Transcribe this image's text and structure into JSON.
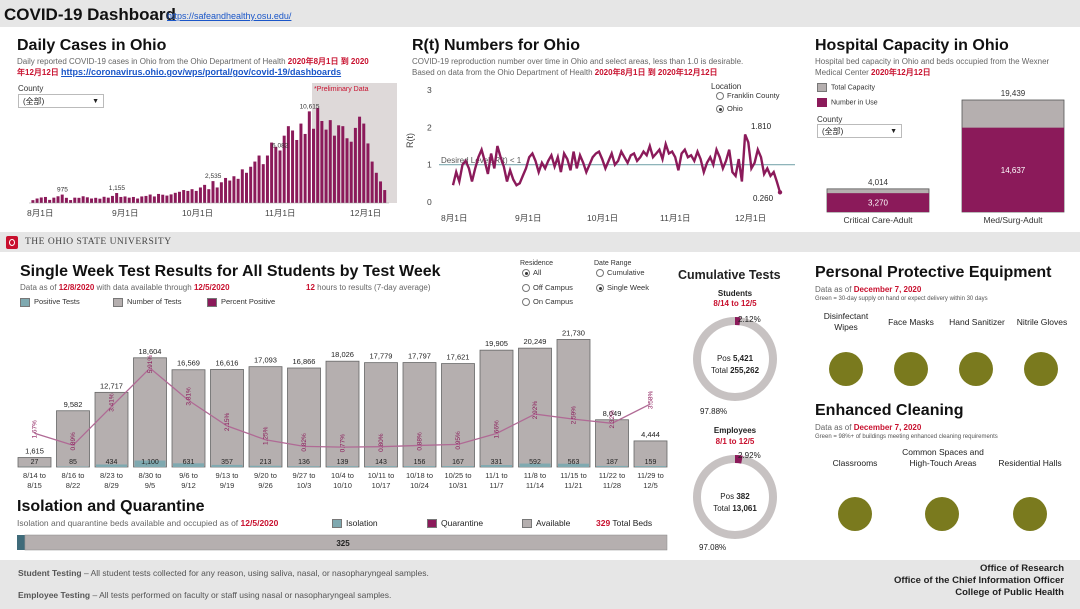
{
  "header": {
    "title": "COVID-19 Dashboard",
    "url": "https://safeandhealthy.osu.edu/"
  },
  "daily_cases": {
    "title": "Daily Cases in Ohio",
    "subtitle": "Daily reported COVID-19 cases in Ohio from the Ohio Department of Health",
    "date_range_a": "2020年8月1日 到 2020",
    "date_range_b": "年12月12日",
    "source_link": "https://coronavirus.ohio.gov/wps/portal/gov/covid-19/dashboards",
    "county_label": "County",
    "county_value": "(全部)",
    "preliminary": "*Preliminary Data",
    "colors": {
      "bar": "#8b1a5a",
      "shade": "#ded9d9"
    }
  },
  "rt": {
    "title": "R(t) Numbers for Ohio",
    "subtitle_a": "COVID-19 reproduction number over time in Ohio and select areas, less than 1.0 is desirable.",
    "subtitle_b": "Based on data from the Ohio Department of Health",
    "date_range": "2020年8月1日 到 2020年12月12日",
    "ylabel": "R(t)",
    "desired": "Desired Level: R(t) < 1",
    "location_label": "Location",
    "locations": [
      "Franklin County",
      "Ohio"
    ],
    "peak_label": "1.810",
    "end_label": "0.260"
  },
  "hospital": {
    "title": "Hospital Capacity in Ohio",
    "subtitle": "Hospital bed capacity in Ohio and beds occupied from the Wexner Medical Center",
    "date": "2020年12月12日",
    "legend": [
      "Total Capacity",
      "Number in Use"
    ],
    "county_label": "County",
    "county_value": "(全部)",
    "colors": {
      "capacity": "#b5afaf",
      "in_use": "#8b1a5a"
    }
  },
  "osu": {
    "name": "THE OHIO STATE UNIVERSITY"
  },
  "tests": {
    "title": "Single Week Test Results for All Students by Test Week",
    "data_as_of_prefix": "Data as of",
    "data_as_of": "12/8/2020",
    "available_prefix": "with data available through",
    "available_through": "12/5/2020",
    "hours_value": "12",
    "hours_text": "hours to results (7-day average)",
    "legend": [
      "Positive Tests",
      "Number of Tests",
      "Percent Positive"
    ],
    "residence_label": "Residence",
    "residence_options": [
      "All",
      "Off Campus",
      "On Campus"
    ],
    "date_range_label": "Date Range",
    "date_range_options": [
      "Cumulative",
      "Single Week"
    ],
    "colors": {
      "pos": "#7fa9b0",
      "tests": "#b5afaf",
      "pct": "#8b1a5a"
    }
  },
  "chart_data": [
    {
      "type": "bar",
      "title": "Daily Cases in Ohio",
      "x_ticks": [
        "8月1日",
        "9月1日",
        "10月1日",
        "11月1日",
        "12月1日"
      ],
      "values": [
        330,
        520,
        640,
        700,
        360,
        620,
        780,
        975,
        600,
        340,
        620,
        600,
        780,
        660,
        520,
        600,
        500,
        720,
        620,
        820,
        1155,
        700,
        760,
        620,
        700,
        520,
        760,
        820,
        980,
        760,
        1050,
        960,
        860,
        1000,
        1180,
        1300,
        1500,
        1400,
        1600,
        1400,
        1800,
        2100,
        1600,
        2535,
        1800,
        2400,
        2900,
        2600,
        3100,
        2800,
        3900,
        3500,
        4200,
        4800,
        5500,
        4500,
        5500,
        7000,
        6500,
        6082,
        7800,
        8900,
        8400,
        7300,
        9200,
        8000,
        10615,
        8600,
        11000,
        9500,
        8500,
        9600,
        7800,
        9000,
        8900,
        7500,
        7100,
        8700,
        10000,
        9200,
        6900,
        4800,
        3500,
        2500,
        1500
      ],
      "value_labels": [
        {
          "i": 7,
          "label": "975"
        },
        {
          "i": 20,
          "label": "1,155"
        },
        {
          "i": 43,
          "label": "2,535"
        },
        {
          "i": 59,
          "label": "6,082"
        },
        {
          "i": 66,
          "label": "10,615"
        }
      ],
      "ylim": [
        0,
        11700
      ]
    },
    {
      "type": "line",
      "title": "R(t) Numbers for Ohio",
      "ylabel": "R(t)",
      "y_ticks": [
        0,
        1,
        2,
        3
      ],
      "x_ticks": [
        "8月1日",
        "9月1日",
        "10月1日",
        "11月1日",
        "12月1日"
      ],
      "ylim": [
        0,
        3
      ],
      "reference_line": 1.0,
      "values": [
        0.45,
        0.8,
        0.55,
        1.0,
        1.1,
        0.9,
        0.55,
        0.9,
        1.2,
        1.4,
        1.1,
        0.75,
        1.3,
        0.9,
        1.5,
        1.2,
        0.95,
        0.55,
        0.85,
        0.6,
        0.45,
        0.5,
        0.7,
        0.9,
        1.2,
        1.3,
        1.1,
        0.8,
        1.05,
        0.9,
        1.1,
        1.25,
        0.95,
        1.2,
        0.8,
        1.3,
        1.15,
        0.85,
        1.35,
        0.9,
        1.25,
        1.05,
        0.8,
        1.0,
        1.2,
        1.3,
        1.35,
        1.15,
        0.9,
        1.1,
        1.3,
        1.0,
        1.1,
        1.35,
        1.2,
        1.05,
        1.25,
        1.3,
        1.1,
        1.2,
        1.35,
        1.25,
        1.5,
        1.2,
        1.3,
        1.4,
        1.15,
        1.55,
        1.3,
        1.35,
        1.2,
        0.85,
        1.3,
        1.4,
        1.2,
        1.25,
        1.1,
        1.35,
        1.15,
        0.8,
        1.05,
        1.2,
        1.0,
        1.4,
        1.2,
        0.9,
        1.1,
        1.4,
        0.8,
        0.7,
        1.15,
        0.55,
        1.81,
        1.6,
        0.9,
        1.05,
        1.4,
        1.2,
        0.75,
        0.9,
        0.7,
        0.8,
        0.55,
        0.26
      ]
    },
    {
      "type": "bar",
      "title": "Hospital Capacity in Ohio",
      "categories": [
        "Critical Care-Adult",
        "Med/Surg-Adult"
      ],
      "series": [
        {
          "name": "Total Capacity",
          "values": [
            4014,
            19439
          ]
        },
        {
          "name": "Number in Use",
          "values": [
            3270,
            14637
          ]
        }
      ],
      "value_labels": {
        "capacity": [
          "4,014",
          "19,439"
        ],
        "in_use": [
          "3,270",
          "14,637"
        ]
      }
    },
    {
      "type": "bar",
      "title": "Single Week Test Results for All Students by Test Week",
      "categories": [
        "8/14 to 8/15",
        "8/16 to 8/22",
        "8/23 to 8/29",
        "8/30 to 9/5",
        "9/6 to 9/12",
        "9/13 to 9/19",
        "9/20 to 9/26",
        "9/27 to 10/3",
        "10/4 to 10/10",
        "10/11 to 10/17",
        "10/18 to 10/24",
        "10/25 to 10/31",
        "11/1 to 11/7",
        "11/8 to 11/14",
        "11/15 to 11/21",
        "11/22 to 11/28",
        "11/29 to 12/5"
      ],
      "series": [
        {
          "name": "Number of Tests",
          "values": [
            1615,
            9582,
            12717,
            18604,
            16569,
            16616,
            17093,
            16866,
            18026,
            17779,
            17797,
            17621,
            19905,
            20249,
            21730,
            8049,
            4444
          ],
          "labels": [
            "1,615",
            "9,582",
            "12,717",
            "18,604",
            "16,569",
            "16,616",
            "17,093",
            "16,866",
            "18,026",
            "17,779",
            "17,797",
            "17,621",
            "19,905",
            "20,249",
            "21,730",
            "8,049",
            "4,444"
          ]
        },
        {
          "name": "Positive Tests",
          "values": [
            27,
            85,
            434,
            1100,
            631,
            357,
            213,
            136,
            139,
            143,
            156,
            167,
            331,
            592,
            563,
            187,
            159
          ],
          "labels": [
            "27",
            "85",
            "434",
            "1,100",
            "631",
            "357",
            "213",
            "136",
            "139",
            "143",
            "156",
            "167",
            "331",
            "592",
            "563",
            "187",
            "159"
          ]
        },
        {
          "name": "Percent Positive",
          "values": [
            1.67,
            0.89,
            3.41,
            5.91,
            3.81,
            2.15,
            1.25,
            0.82,
            0.77,
            0.8,
            0.88,
            0.95,
            1.66,
            2.92,
            2.59,
            2.32,
            3.58
          ],
          "labels": [
            "1.67%",
            "0.89%",
            "3.41%",
            "5.91%",
            "3.81%",
            "2.15%",
            "1.25%",
            "0.82%",
            "0.77%",
            "0.80%",
            "0.88%",
            "0.95%",
            "1.66%",
            "2.92%",
            "2.59%",
            "2.32%",
            "3.58%"
          ]
        }
      ],
      "ylim": [
        0,
        23000
      ]
    }
  ],
  "cumulative": {
    "title": "Cumulative Tests",
    "students": {
      "label": "Students",
      "range": "8/14 to 12/5",
      "pct": "2.12%",
      "pos_label": "Pos",
      "pos": "5,421",
      "total_label": "Total",
      "total": "255,262",
      "neg_pct": "97.88%",
      "pct_value": 2.12
    },
    "employees": {
      "label": "Employees",
      "range": "8/1 to 12/5",
      "pct": "2.92%",
      "pos_label": "Pos",
      "pos": "382",
      "total_label": "Total",
      "total": "13,061",
      "neg_pct": "97.08%",
      "pct_value": 2.92
    }
  },
  "ppe": {
    "title": "Personal Protective Equipment",
    "data_as_of_prefix": "Data as of",
    "data_as_of": "December 7, 2020",
    "note": "Green = 30-day supply on hand or expect delivery within 30 days",
    "items": [
      "Disinfectant Wipes",
      "Face Masks",
      "Hand Sanitizer",
      "Nitrile Gloves"
    ],
    "color": "#7a7a1e"
  },
  "cleaning": {
    "title": "Enhanced Cleaning",
    "data_as_of_prefix": "Data as of",
    "data_as_of": "December 7, 2020",
    "note": "Green = 98%+ of buildings meeting enhanced cleaning requirements",
    "items": [
      "Classrooms",
      "Common Spaces and High-Touch Areas",
      "Residential Halls"
    ]
  },
  "isolation": {
    "title": "Isolation and Quarantine",
    "subtitle": "Isolation and quarantine beds available and occupied as of",
    "date": "12/5/2020",
    "legend": [
      "Isolation",
      "Quarantine",
      "Available"
    ],
    "total_beds_value": "329",
    "total_beds_text": "Total Beds",
    "isolation_value": 4,
    "quarantine_value": 0,
    "available_label": "325",
    "available_value": 325
  },
  "footer": {
    "student_label": "Student Testing",
    "student_text": " – All student tests collected for any reason, using saliva, nasal, or nasopharyngeal samples.",
    "employee_label": "Employee Testing",
    "employee_text": " – All tests performed on faculty or staff using nasal or nasopharyngeal samples.",
    "credits": [
      "Office of Research",
      "Office of the Chief Information Officer",
      "College of Public Health"
    ]
  }
}
